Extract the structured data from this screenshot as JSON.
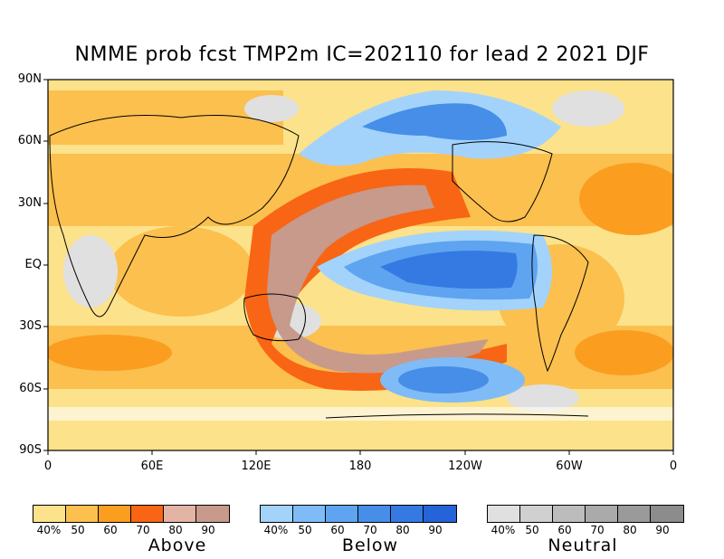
{
  "title": "NMME prob fcst TMP2m IC=202110 for lead 2 2021 DJF",
  "y_axis_labels": [
    "90N",
    "60N",
    "30N",
    "EQ",
    "30S",
    "60S",
    "90S"
  ],
  "x_axis_labels": [
    "0",
    "60E",
    "120E",
    "180",
    "120W",
    "60W",
    "0"
  ],
  "legend": [
    {
      "category": "Above",
      "tick_labels": [
        "40%",
        "50",
        "60",
        "70",
        "80",
        "90"
      ],
      "colors": [
        "#fce28a",
        "#fbc04e",
        "#fb9d1f",
        "#f86515",
        "#e3b4a4",
        "#c79a8c"
      ]
    },
    {
      "category": "Below",
      "tick_labels": [
        "40%",
        "50",
        "60",
        "70",
        "80",
        "90"
      ],
      "colors": [
        "#a3d3fb",
        "#7fbcf7",
        "#5ea4f1",
        "#468ee8",
        "#357ae2",
        "#2463d8"
      ]
    },
    {
      "category": "Neutral",
      "tick_labels": [
        "40%",
        "50",
        "60",
        "70",
        "80",
        "90"
      ],
      "colors": [
        "#e0e0e0",
        "#d0d0d0",
        "#bcbcbc",
        "#aaaaaa",
        "#9a9a9a",
        "#8c8c8c"
      ]
    }
  ],
  "colors": {
    "land_outline": "#000000",
    "no_signal": "#ffffff"
  }
}
